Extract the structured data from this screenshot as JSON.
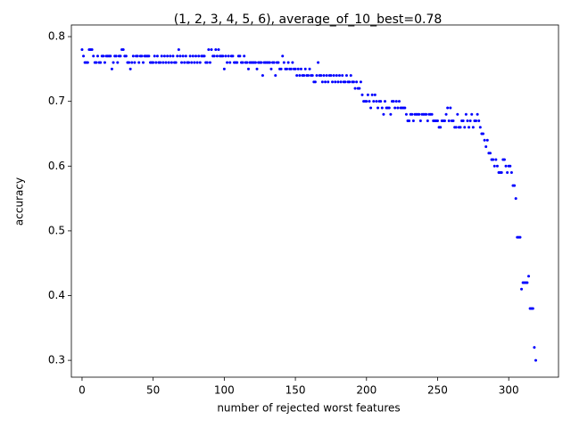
{
  "chart_data": {
    "type": "scatter",
    "title": "(1, 2, 3, 4, 5, 6), average_of_10_best=0.78",
    "x_label": "number of rejected worst features",
    "y_label": "accuracy",
    "color": "#0000ff",
    "x": [
      0,
      1,
      2,
      3,
      4,
      5,
      6,
      7,
      8,
      9,
      10,
      11,
      12,
      13,
      14,
      15,
      16,
      17,
      18,
      19,
      20,
      21,
      22,
      23,
      24,
      25,
      26,
      27,
      28,
      29,
      30,
      31,
      32,
      33,
      34,
      35,
      36,
      37,
      38,
      39,
      40,
      41,
      42,
      43,
      44,
      45,
      46,
      47,
      48,
      49,
      50,
      51,
      52,
      53,
      54,
      55,
      56,
      57,
      58,
      59,
      60,
      61,
      62,
      63,
      64,
      65,
      66,
      67,
      68,
      69,
      70,
      71,
      72,
      73,
      74,
      75,
      76,
      77,
      78,
      79,
      80,
      81,
      82,
      83,
      84,
      85,
      86,
      87,
      88,
      89,
      90,
      91,
      92,
      93,
      94,
      95,
      96,
      97,
      98,
      99,
      100,
      101,
      102,
      103,
      104,
      105,
      106,
      107,
      108,
      109,
      110,
      111,
      112,
      113,
      114,
      115,
      116,
      117,
      118,
      119,
      120,
      121,
      122,
      123,
      124,
      125,
      126,
      127,
      128,
      129,
      130,
      131,
      132,
      133,
      134,
      135,
      136,
      137,
      138,
      139,
      140,
      141,
      142,
      143,
      144,
      145,
      146,
      147,
      148,
      149,
      150,
      151,
      152,
      153,
      154,
      155,
      156,
      157,
      158,
      159,
      160,
      161,
      162,
      163,
      164,
      165,
      166,
      167,
      168,
      169,
      170,
      171,
      172,
      173,
      174,
      175,
      176,
      177,
      178,
      179,
      180,
      181,
      182,
      183,
      184,
      185,
      186,
      187,
      188,
      189,
      190,
      191,
      192,
      193,
      194,
      195,
      196,
      197,
      198,
      199,
      200,
      201,
      202,
      203,
      204,
      205,
      206,
      207,
      208,
      209,
      210,
      211,
      212,
      213,
      214,
      215,
      216,
      217,
      218,
      219,
      220,
      221,
      222,
      223,
      224,
      225,
      226,
      227,
      228,
      229,
      230,
      231,
      232,
      233,
      234,
      235,
      236,
      237,
      238,
      239,
      240,
      241,
      242,
      243,
      244,
      245,
      246,
      247,
      248,
      249,
      250,
      251,
      252,
      253,
      254,
      255,
      256,
      257,
      258,
      259,
      260,
      261,
      262,
      263,
      264,
      265,
      266,
      267,
      268,
      269,
      270,
      271,
      272,
      273,
      274,
      275,
      276,
      277,
      278,
      279,
      280,
      281,
      282,
      283,
      284,
      285,
      286,
      287,
      288,
      289,
      290,
      291,
      292,
      293,
      294,
      295,
      296,
      297,
      298,
      299,
      300,
      301,
      302,
      303,
      304,
      305,
      306,
      307,
      308,
      309,
      310,
      311,
      312,
      313,
      314,
      315,
      316,
      317,
      318,
      319
    ],
    "values": [
      0.78,
      0.77,
      0.76,
      0.76,
      0.76,
      0.78,
      0.78,
      0.78,
      0.77,
      0.76,
      0.76,
      0.77,
      0.76,
      0.76,
      0.77,
      0.77,
      0.76,
      0.77,
      0.77,
      0.77,
      0.77,
      0.75,
      0.76,
      0.77,
      0.77,
      0.76,
      0.77,
      0.77,
      0.78,
      0.78,
      0.77,
      0.77,
      0.76,
      0.76,
      0.75,
      0.76,
      0.77,
      0.76,
      0.77,
      0.77,
      0.76,
      0.77,
      0.77,
      0.76,
      0.77,
      0.77,
      0.77,
      0.77,
      0.76,
      0.76,
      0.76,
      0.77,
      0.76,
      0.77,
      0.76,
      0.76,
      0.77,
      0.76,
      0.77,
      0.76,
      0.77,
      0.76,
      0.77,
      0.76,
      0.77,
      0.76,
      0.76,
      0.77,
      0.78,
      0.77,
      0.76,
      0.77,
      0.76,
      0.77,
      0.76,
      0.76,
      0.77,
      0.76,
      0.77,
      0.76,
      0.77,
      0.76,
      0.77,
      0.76,
      0.77,
      0.77,
      0.77,
      0.76,
      0.76,
      0.78,
      0.76,
      0.78,
      0.77,
      0.77,
      0.78,
      0.77,
      0.78,
      0.77,
      0.77,
      0.77,
      0.75,
      0.77,
      0.76,
      0.77,
      0.76,
      0.77,
      0.77,
      0.76,
      0.76,
      0.76,
      0.77,
      0.77,
      0.76,
      0.76,
      0.77,
      0.76,
      0.76,
      0.75,
      0.76,
      0.76,
      0.76,
      0.76,
      0.76,
      0.75,
      0.76,
      0.76,
      0.76,
      0.74,
      0.76,
      0.76,
      0.76,
      0.76,
      0.76,
      0.75,
      0.76,
      0.76,
      0.74,
      0.76,
      0.76,
      0.75,
      0.75,
      0.77,
      0.76,
      0.75,
      0.75,
      0.76,
      0.75,
      0.75,
      0.76,
      0.75,
      0.75,
      0.74,
      0.75,
      0.74,
      0.75,
      0.74,
      0.74,
      0.75,
      0.74,
      0.74,
      0.75,
      0.74,
      0.74,
      0.73,
      0.73,
      0.74,
      0.76,
      0.74,
      0.74,
      0.73,
      0.74,
      0.73,
      0.74,
      0.73,
      0.74,
      0.74,
      0.73,
      0.74,
      0.73,
      0.74,
      0.73,
      0.74,
      0.73,
      0.74,
      0.73,
      0.73,
      0.74,
      0.73,
      0.73,
      0.74,
      0.73,
      0.73,
      0.72,
      0.73,
      0.72,
      0.72,
      0.73,
      0.71,
      0.7,
      0.7,
      0.7,
      0.71,
      0.7,
      0.69,
      0.71,
      0.7,
      0.71,
      0.7,
      0.69,
      0.7,
      0.7,
      0.69,
      0.68,
      0.7,
      0.69,
      0.69,
      0.69,
      0.68,
      0.7,
      0.7,
      0.69,
      0.7,
      0.69,
      0.7,
      0.69,
      0.69,
      0.69,
      0.69,
      0.68,
      0.67,
      0.67,
      0.68,
      0.68,
      0.67,
      0.68,
      0.68,
      0.68,
      0.68,
      0.67,
      0.68,
      0.68,
      0.68,
      0.68,
      0.67,
      0.68,
      0.68,
      0.68,
      0.67,
      0.67,
      0.67,
      0.67,
      0.66,
      0.66,
      0.67,
      0.67,
      0.67,
      0.68,
      0.69,
      0.67,
      0.69,
      0.67,
      0.67,
      0.66,
      0.66,
      0.68,
      0.66,
      0.66,
      0.67,
      0.67,
      0.66,
      0.68,
      0.67,
      0.66,
      0.67,
      0.68,
      0.66,
      0.67,
      0.67,
      0.68,
      0.67,
      0.66,
      0.65,
      0.65,
      0.64,
      0.63,
      0.64,
      0.62,
      0.62,
      0.61,
      0.61,
      0.6,
      0.61,
      0.6,
      0.59,
      0.59,
      0.59,
      0.61,
      0.61,
      0.6,
      0.59,
      0.6,
      0.6,
      0.59,
      0.57,
      0.57,
      0.55,
      0.49,
      0.49,
      0.49,
      0.41,
      0.42,
      0.42,
      0.42,
      0.42,
      0.43,
      0.38,
      0.38,
      0.38,
      0.32,
      0.3
    ],
    "xlim": [
      -7.5,
      335
    ],
    "ylim": [
      0.274,
      0.818
    ],
    "xticks": [
      0,
      50,
      100,
      150,
      200,
      250,
      300
    ],
    "yticks": [
      0.3,
      0.4,
      0.5,
      0.6,
      0.7,
      0.8
    ]
  }
}
